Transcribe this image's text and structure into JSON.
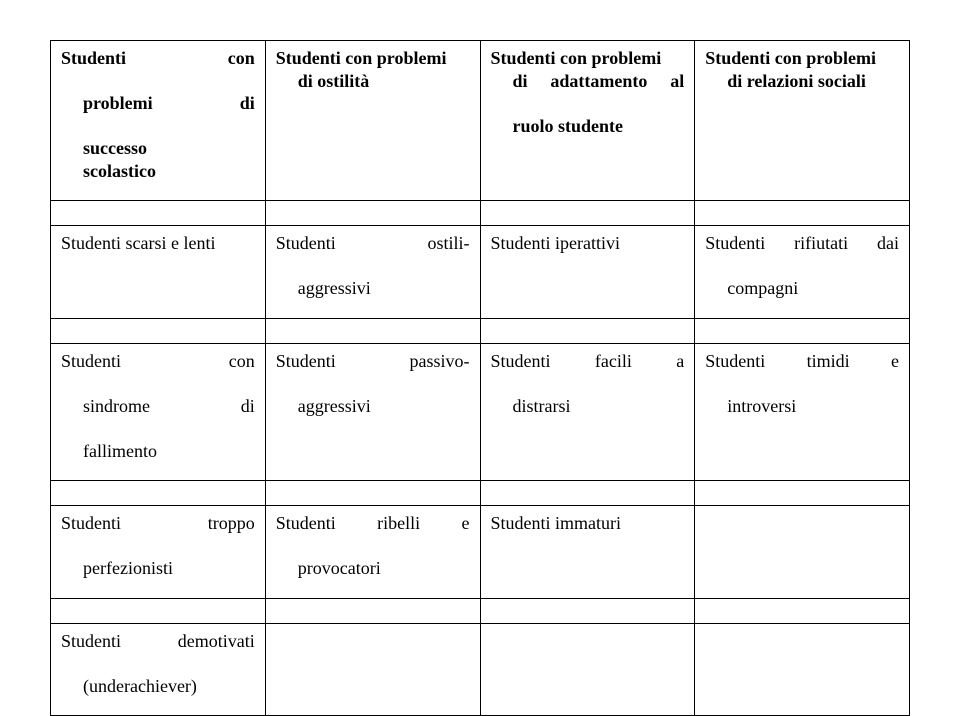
{
  "header": {
    "c1_l1": "Studenti",
    "c1_l1b": "con",
    "c1_l2": "problemi",
    "c1_l2b": "di",
    "c1_l3": "successo",
    "c1_l4": "scolastico",
    "c2_l1": "Studenti con problemi",
    "c2_l2": "di ostilità",
    "c3_l1": "Studenti con problemi",
    "c3_l2a": "di",
    "c3_l2b": "adattamento",
    "c3_l2c": "al",
    "c3_l3": "ruolo studente",
    "c4_l1": "Studenti con problemi",
    "c4_l2": "di relazioni sociali"
  },
  "r2": {
    "c1": "Studenti scarsi e lenti",
    "c2_l1a": "Studenti",
    "c2_l1b": "ostili-",
    "c2_l2": "aggressivi",
    "c3": "Studenti iperattivi",
    "c4_l1a": "Studenti",
    "c4_l1b": "rifiutati",
    "c4_l1c": "dai",
    "c4_l2": "compagni"
  },
  "r3": {
    "c1_l1a": "Studenti",
    "c1_l1b": "con",
    "c1_l2a": "sindrome",
    "c1_l2b": "di",
    "c1_l3": "fallimento",
    "c2_l1a": "Studenti",
    "c2_l1b": "passivo-",
    "c2_l2": "aggressivi",
    "c3_l1a": "Studenti",
    "c3_l1b": "facili",
    "c3_l1c": "a",
    "c3_l2": "distrarsi",
    "c4_l1a": "Studenti",
    "c4_l1b": "timidi",
    "c4_l1c": "e",
    "c4_l2": "introversi"
  },
  "r4": {
    "c1_l1a": "Studenti",
    "c1_l1b": "troppo",
    "c1_l2": "perfezionisti",
    "c2_l1a": "Studenti",
    "c2_l1b": "ribelli",
    "c2_l1c": "e",
    "c2_l2": "provocatori",
    "c3": "Studenti immaturi"
  },
  "r5": {
    "c1_l1a": "Studenti",
    "c1_l1b": "demotivati",
    "c1_l2": "(underachiever)"
  }
}
